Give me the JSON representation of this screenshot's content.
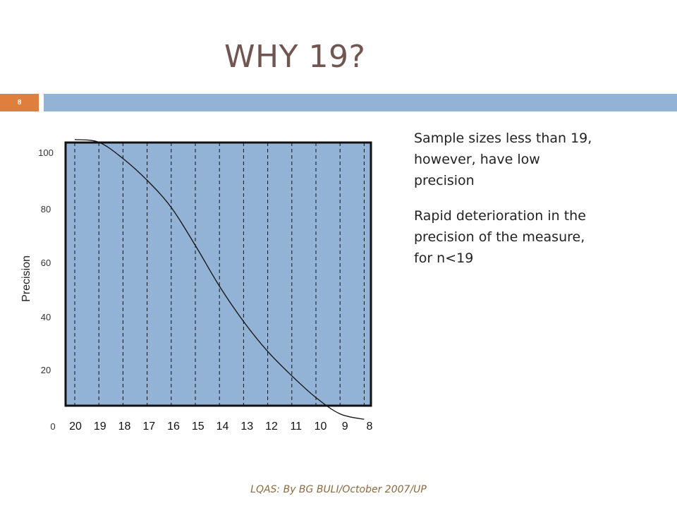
{
  "slide": {
    "title": "WHY 19?",
    "number": "8",
    "footer": "LQAS: By BG BULI/October 2007/UP",
    "notes": [
      "Sample sizes less than 19, however, have low precision",
      "Rapid deterioration in the  precision of the measure, for n<19"
    ],
    "colors": {
      "title": "#705550",
      "accent": "#e07e3c",
      "bar": "#93b3d6",
      "plot_fill": "#92b3d6"
    }
  },
  "chart_data": {
    "type": "line",
    "title": "",
    "xlabel": "",
    "ylabel": "Precision",
    "x_categories": [
      "20",
      "19",
      "18",
      "17",
      "16",
      "15",
      "14",
      "13",
      "12",
      "11",
      "10",
      "9",
      "8"
    ],
    "y_ticks": [
      "100",
      "80",
      "60",
      "40",
      "20"
    ],
    "zero_label": "0",
    "ylim": [
      0,
      100
    ],
    "grid": "vertical dashed",
    "series": [
      {
        "x": [
          20,
          19,
          18,
          17,
          16,
          15,
          14,
          13,
          12,
          11,
          10,
          9,
          8
        ],
        "y": [
          105,
          104,
          98,
          90,
          80,
          66,
          51,
          38,
          27,
          18,
          10,
          4,
          2
        ]
      }
    ]
  }
}
